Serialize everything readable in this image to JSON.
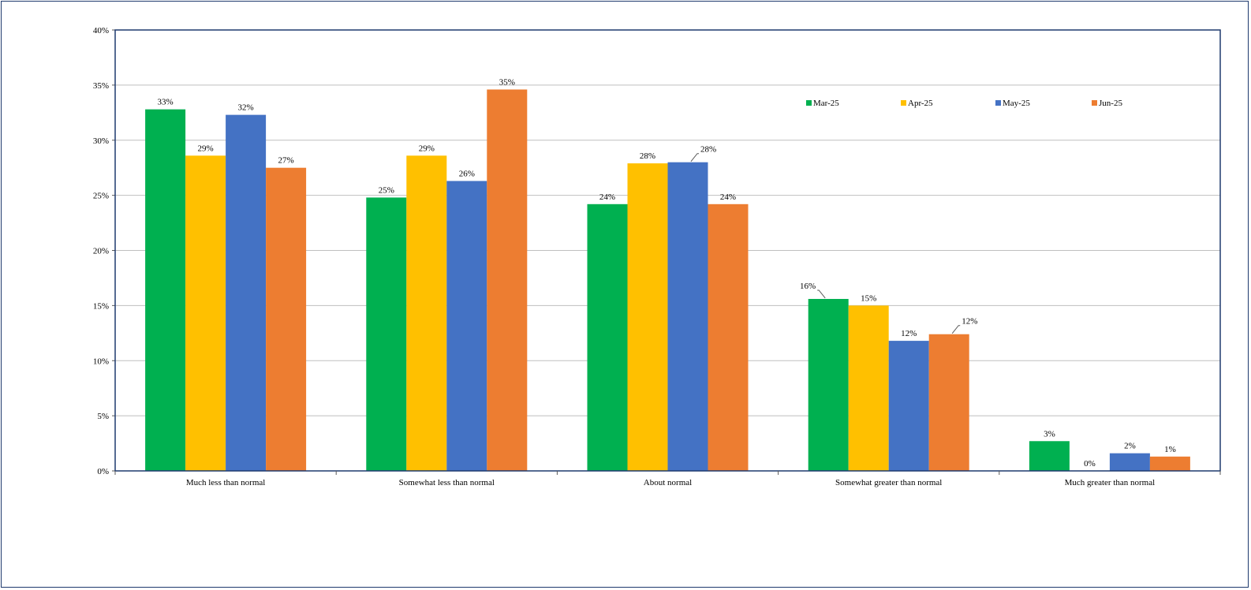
{
  "chart_data": {
    "type": "bar",
    "categories": [
      "Much less than normal",
      "Somewhat less than normal",
      "About normal",
      "Somewhat greater than normal",
      "Much greater than normal"
    ],
    "series": [
      {
        "name": "Mar-25",
        "color": "#00b050",
        "values": [
          32.8,
          24.8,
          24.2,
          15.6,
          2.7
        ],
        "labels": [
          "33%",
          "25%",
          "24%",
          "16%",
          "3%"
        ]
      },
      {
        "name": "Apr-25",
        "color": "#ffc000",
        "values": [
          28.6,
          28.6,
          27.9,
          15.0,
          0.0
        ],
        "labels": [
          "29%",
          "29%",
          "28%",
          "15%",
          "0%"
        ]
      },
      {
        "name": "May-25",
        "color": "#4472c4",
        "values": [
          32.3,
          26.3,
          28.0,
          11.8,
          1.6
        ],
        "labels": [
          "32%",
          "26%",
          "28%",
          "12%",
          "2%"
        ]
      },
      {
        "name": "Jun-25",
        "color": "#ed7d31",
        "values": [
          27.5,
          34.6,
          24.2,
          12.4,
          1.3
        ],
        "labels": [
          "27%",
          "35%",
          "24%",
          "12%",
          "1%"
        ]
      }
    ],
    "yticks": [
      "0%",
      "5%",
      "10%",
      "15%",
      "20%",
      "25%",
      "30%",
      "35%",
      "40%"
    ],
    "ylim": [
      0,
      40
    ],
    "grid": true,
    "legend_position": "top-right",
    "title": "",
    "xlabel": "",
    "ylabel": ""
  }
}
